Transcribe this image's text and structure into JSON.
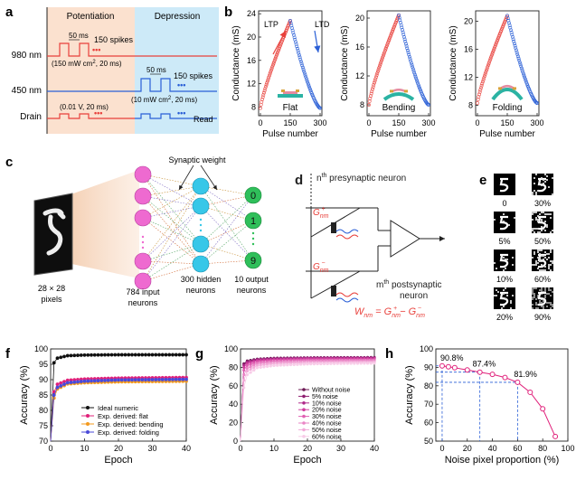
{
  "panels": {
    "a": {
      "letter": "a",
      "potentiation": "Potentiation",
      "depression": "Depression",
      "rows": [
        {
          "label": "980 nm",
          "color": "#e8403b"
        },
        {
          "label": "450 nm",
          "color": "#2a5fd6"
        },
        {
          "label": "Drain",
          "color": "#e8403b"
        }
      ],
      "ann_980_a": "50 ms",
      "ann_980_b": "150 spikes",
      "ann_980_c": "(150 mW cm",
      "ann_980_d": "2",
      "ann_980_e": ", 20 ms)",
      "ann_450_a": "50 ms",
      "ann_450_b": "150 spikes",
      "ann_450_c": "(10 mW cm",
      "ann_450_d": "2",
      "ann_450_e": ", 20 ms)",
      "ann_drain": "(0.01 V, 20 ms)",
      "read": "Read",
      "dots": "•••"
    },
    "b": {
      "letter": "b",
      "ylabel": "Conductance (mS)",
      "xlabel": "Pulse number",
      "ltp": "LTP",
      "ltd": "LTD",
      "charts": [
        {
          "name": "Flat",
          "yticks": [
            "8",
            "12",
            "16",
            "20",
            "24"
          ],
          "ymin": 6.5,
          "ymax": 24.5,
          "gmin": 7.8,
          "gmax": 22.8
        },
        {
          "name": "Bending",
          "yticks": [
            "8",
            "12",
            "16",
            "20"
          ],
          "ymin": 6.5,
          "ymax": 21,
          "gmin": 8,
          "gmax": 20.4
        },
        {
          "name": "Folding",
          "yticks": [
            "8",
            "12",
            "16",
            "20"
          ],
          "ymin": 6.5,
          "ymax": 21.5,
          "gmin": 8.3,
          "gmax": 20.8
        }
      ],
      "xticks": [
        "0",
        "150",
        "300"
      ]
    },
    "c": {
      "letter": "c",
      "synaptic": "Synaptic weight",
      "input_size": "28 × 28",
      "pixels": "pixels",
      "input_l1": "784 input",
      "input_l2": "neurons",
      "hidden_l1": "300 hidden",
      "hidden_l2": "neurons",
      "output_l1": "10 output",
      "output_l2": "neurons",
      "out0": "0",
      "out1": "1",
      "out9": "9"
    },
    "d": {
      "letter": "d",
      "pre_n": "n",
      "pre_sup": "th",
      "pre_rest": " presynaptic neuron",
      "post_m": "m",
      "post_sup": "th",
      "post_rest": " postsynaptic",
      "post_l2": "neuron",
      "gplus": "G",
      "gminus": "G",
      "sub": "nm",
      "plus": "+",
      "minus": "−",
      "w_eq": "W"
    },
    "e": {
      "letter": "e",
      "labels": [
        "0",
        "30%",
        "5%",
        "50%",
        "10%",
        "60%",
        "20%",
        "90%"
      ]
    },
    "f": {
      "letter": "f",
      "ylabel": "Accuracy (%)",
      "xlabel": "Epoch",
      "yticks": [
        "70",
        "75",
        "80",
        "85",
        "90",
        "95",
        "100"
      ],
      "xticks": [
        "0",
        "10",
        "20",
        "30",
        "40"
      ],
      "legend": [
        {
          "name": "Ideal numeric",
          "color": "#111111"
        },
        {
          "name": "Exp. derived: flat",
          "color": "#e0207a"
        },
        {
          "name": "Exp. derived: bending",
          "color": "#f39a1e"
        },
        {
          "name": "Exp. derived: folding",
          "color": "#4a4ad8"
        }
      ]
    },
    "g": {
      "letter": "g",
      "ylabel": "Accuracy (%)",
      "xlabel": "Epoch",
      "yticks": [
        "0",
        "20",
        "40",
        "60",
        "80",
        "100"
      ],
      "xticks": [
        "0",
        "10",
        "20",
        "30",
        "40"
      ],
      "legend": [
        {
          "name": "Without noise",
          "color": "#6d1a55"
        },
        {
          "name": "5% noise",
          "color": "#8e1e70"
        },
        {
          "name": "10% noise",
          "color": "#b02a8a"
        },
        {
          "name": "20% noise",
          "color": "#d03e9e"
        },
        {
          "name": "30% noise",
          "color": "#e060b2"
        },
        {
          "name": "40% noise",
          "color": "#ea86c6"
        },
        {
          "name": "50% noise",
          "color": "#f2aad8"
        },
        {
          "name": "60% noise",
          "color": "#f8cce8"
        }
      ]
    },
    "h": {
      "letter": "h",
      "ylabel": "Accuracy (%)",
      "xlabel": "Noise pixel proportion (%)",
      "yticks": [
        "50",
        "60",
        "70",
        "80",
        "90",
        "100"
      ],
      "xticks": [
        "0",
        "20",
        "40",
        "60",
        "80",
        "100"
      ],
      "ann": [
        "90.8%",
        "87.4%",
        "81.9%"
      ]
    }
  },
  "chart_data": [
    {
      "type": "line",
      "title": "",
      "xlabel": "Epoch",
      "ylabel": "Accuracy (%)",
      "ylim": [
        70,
        100
      ],
      "xlim": [
        0,
        40
      ],
      "series": [
        {
          "name": "Ideal numeric",
          "x": [
            1,
            2,
            5,
            10,
            20,
            30,
            40
          ],
          "values": [
            95.5,
            97.0,
            97.8,
            98.0,
            98.1,
            98.1,
            98.1
          ]
        },
        {
          "name": "Exp. derived: flat",
          "x": [
            1,
            2,
            5,
            10,
            20,
            30,
            40
          ],
          "values": [
            86.0,
            88.5,
            89.8,
            90.2,
            90.5,
            90.6,
            90.7
          ]
        },
        {
          "name": "Exp. derived: bending",
          "x": [
            1,
            2,
            5,
            10,
            20,
            30,
            40
          ],
          "values": [
            84.0,
            87.0,
            88.6,
            89.0,
            89.3,
            89.4,
            89.5
          ]
        },
        {
          "name": "Exp. derived: folding",
          "x": [
            1,
            2,
            5,
            10,
            20,
            30,
            40
          ],
          "values": [
            85.0,
            87.5,
            89.0,
            89.5,
            89.9,
            90.0,
            90.1
          ]
        }
      ]
    },
    {
      "type": "line",
      "title": "",
      "xlabel": "Epoch",
      "ylabel": "Accuracy (%)",
      "ylim": [
        0,
        100
      ],
      "xlim": [
        0,
        40
      ],
      "series": [
        {
          "name": "Without noise",
          "x": [
            1,
            2,
            5,
            10,
            20,
            30,
            40
          ],
          "values": [
            84,
            87,
            89,
            90,
            90.5,
            90.7,
            90.8
          ]
        },
        {
          "name": "5% noise",
          "x": [
            1,
            2,
            5,
            10,
            20,
            30,
            40
          ],
          "values": [
            83,
            86,
            88.5,
            89.5,
            90.2,
            90.4,
            90.5
          ]
        },
        {
          "name": "10% noise",
          "x": [
            1,
            2,
            5,
            10,
            20,
            30,
            40
          ],
          "values": [
            82,
            85.5,
            88,
            89,
            89.8,
            90,
            90.1
          ]
        },
        {
          "name": "20% noise",
          "x": [
            1,
            2,
            5,
            10,
            20,
            30,
            40
          ],
          "values": [
            80,
            84,
            87,
            88.3,
            89,
            89.3,
            89.4
          ]
        },
        {
          "name": "30% noise",
          "x": [
            1,
            2,
            5,
            10,
            20,
            30,
            40
          ],
          "values": [
            77,
            82,
            85.5,
            87,
            87.8,
            88,
            88.2
          ]
        },
        {
          "name": "40% noise",
          "x": [
            1,
            2,
            5,
            10,
            20,
            30,
            40
          ],
          "values": [
            72,
            79,
            84,
            85.5,
            86.6,
            87,
            87.2
          ]
        },
        {
          "name": "50% noise",
          "x": [
            1,
            2,
            5,
            10,
            20,
            30,
            40
          ],
          "values": [
            66,
            76,
            82,
            84,
            85.2,
            85.6,
            85.9
          ]
        },
        {
          "name": "60% noise",
          "x": [
            1,
            2,
            5,
            10,
            20,
            30,
            40
          ],
          "values": [
            58,
            72,
            79.5,
            82,
            83.6,
            84.2,
            84.5
          ]
        }
      ]
    },
    {
      "type": "line",
      "title": "",
      "xlabel": "Noise pixel proportion (%)",
      "ylabel": "Accuracy (%)",
      "ylim": [
        50,
        100
      ],
      "xlim": [
        -5,
        100
      ],
      "series": [
        {
          "name": "",
          "x": [
            0,
            5,
            10,
            20,
            30,
            40,
            50,
            60,
            70,
            80,
            90
          ],
          "values": [
            90.8,
            90.3,
            89.8,
            88.6,
            87.4,
            86.2,
            84.5,
            81.9,
            76.5,
            67.5,
            52.5
          ]
        }
      ]
    }
  ]
}
